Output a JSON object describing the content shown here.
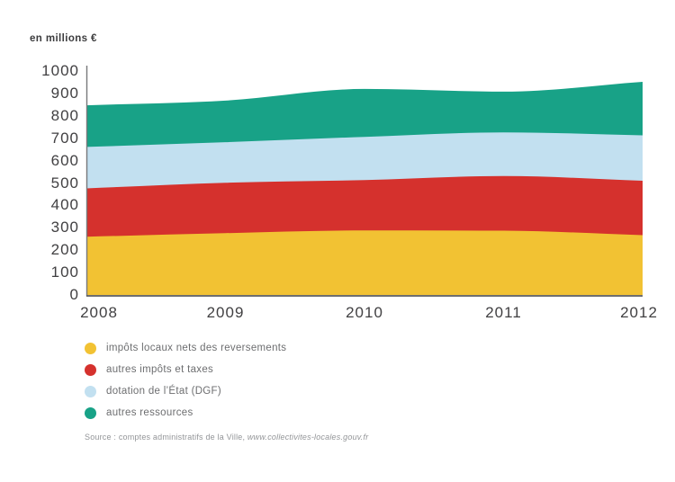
{
  "units_label": "en millions €",
  "source": {
    "prefix": "Source : comptes administratifs de la Ville, ",
    "link": "www.collectivites-locales.gouv.fr"
  },
  "colors": {
    "axis_text": "#414042",
    "legend_text": "#6d6e70",
    "source_text": "#939598",
    "y_axis_line": "#77787b",
    "x_axis_line": "#58595b"
  },
  "chart_data": {
    "type": "area",
    "stacked": true,
    "title": "",
    "ylabel": "en millions €",
    "xlabel": "",
    "ylim": [
      0,
      1000
    ],
    "y_ticks": [
      0,
      100,
      200,
      300,
      400,
      500,
      600,
      700,
      800,
      900,
      1000
    ],
    "grid": false,
    "legend_position": "bottom-left",
    "x": [
      2008,
      2009,
      2010,
      2011,
      2012
    ],
    "series": [
      {
        "name": "impôts locaux nets des reversements",
        "slug": "impots-locaux",
        "color": "#F2C233",
        "values": [
          260,
          276,
          288,
          287,
          267
        ]
      },
      {
        "name": "autres impôts et taxes",
        "slug": "autres-impots-et-taxes",
        "color": "#D5312D",
        "values": [
          216,
          225,
          225,
          244,
          243
        ]
      },
      {
        "name": "dotation de l’État (DGF)",
        "slug": "dotation-etat-dgf",
        "color": "#C2E0F0",
        "values": [
          185,
          181,
          193,
          195,
          203
        ]
      },
      {
        "name": "autres ressources",
        "slug": "autres-ressources",
        "color": "#18A287",
        "values": [
          186,
          186,
          214,
          182,
          239
        ]
      }
    ],
    "cumulative_tops": {
      "impots_locaux": [
        260,
        276,
        288,
        287,
        267
      ],
      "plus_autres_impots": [
        476,
        501,
        513,
        531,
        510
      ],
      "plus_dotation": [
        661,
        682,
        706,
        726,
        713
      ],
      "total": [
        847,
        868,
        920,
        908,
        952
      ]
    }
  }
}
